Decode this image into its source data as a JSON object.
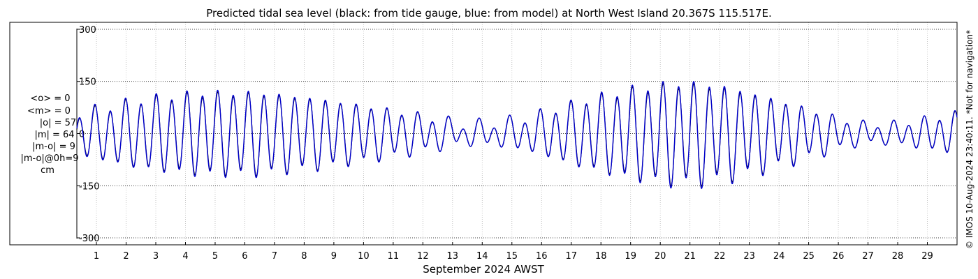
{
  "chart_data": {
    "type": "line",
    "title": "Predicted tidal sea level (black: from tide gauge, blue: from model) at North West Island 20.367S 115.517E.",
    "xlabel": "September 2024 AWST",
    "ylabel": "",
    "x_unit": "day of September 2024",
    "xlim": [
      0.34,
      30.0
    ],
    "ylim": [
      -320,
      320
    ],
    "y_ticks": [
      -300,
      -150,
      0,
      150,
      300
    ],
    "y_tick_labels": [
      "-300",
      "-150",
      "0",
      "150",
      "300"
    ],
    "x_ticks": [
      1,
      2,
      3,
      4,
      5,
      6,
      7,
      8,
      9,
      10,
      11,
      12,
      13,
      14,
      15,
      16,
      17,
      18,
      19,
      20,
      21,
      22,
      23,
      24,
      25,
      26,
      27,
      28,
      29
    ],
    "x_tick_labels": [
      "1",
      "2",
      "3",
      "4",
      "5",
      "6",
      "7",
      "8",
      "9",
      "10",
      "11",
      "12",
      "13",
      "14",
      "15",
      "16",
      "17",
      "18",
      "19",
      "20",
      "21",
      "22",
      "23",
      "24",
      "25",
      "26",
      "27",
      "28",
      "29"
    ],
    "grid": true,
    "legend": "none",
    "stats": {
      "mean_obs": "<o> = 0",
      "mean_model": "<m> = 0",
      "abs_obs": "|o| = 57",
      "abs_model": "|m| = 64",
      "abs_diff": "|m-o| = 9",
      "abs_diff_0h": "|m-o|@0h=9",
      "unit": "cm"
    },
    "series": [
      {
        "color": "#000000",
        "width": 1.2,
        "semidiurnal_peak_amplitude": [
          [
            0.3,
            55
          ],
          [
            2.5,
            95
          ],
          [
            4.5,
            112
          ],
          [
            6.5,
            112
          ],
          [
            8.5,
            95
          ],
          [
            10.5,
            70
          ],
          [
            12.3,
            45
          ],
          [
            13.3,
            28
          ],
          [
            14.3,
            30
          ],
          [
            15.5,
            45
          ],
          [
            17.3,
            90
          ],
          [
            19.0,
            122
          ],
          [
            20.5,
            138
          ],
          [
            21.5,
            135
          ],
          [
            22.5,
            122
          ],
          [
            24.0,
            90
          ],
          [
            25.5,
            55
          ],
          [
            26.5,
            32
          ],
          [
            27.5,
            25
          ],
          [
            28.5,
            35
          ],
          [
            30.0,
            55
          ]
        ],
        "diurnal_amplitude": [
          [
            0,
            14
          ],
          [
            5,
            12
          ],
          [
            10,
            10
          ],
          [
            13,
            18
          ],
          [
            17,
            12
          ],
          [
            21,
            18
          ],
          [
            25,
            14
          ],
          [
            30,
            10
          ]
        ],
        "semidiurnal_period_days": 0.5175,
        "diurnal_period_days": 1.0,
        "semidiurnal_phase": 1.0,
        "diurnal_phase": 0.3
      },
      {
        "color": "#0000cc",
        "width": 1.4,
        "semidiurnal_peak_amplitude": [
          [
            0.3,
            58
          ],
          [
            2.5,
            98
          ],
          [
            4.5,
            117
          ],
          [
            6.5,
            116
          ],
          [
            8.5,
            98
          ],
          [
            10.5,
            72
          ],
          [
            12.3,
            46
          ],
          [
            13.3,
            28
          ],
          [
            14.3,
            30
          ],
          [
            15.5,
            46
          ],
          [
            17.3,
            93
          ],
          [
            19.0,
            127
          ],
          [
            20.5,
            144
          ],
          [
            21.5,
            141
          ],
          [
            22.5,
            127
          ],
          [
            24.0,
            93
          ],
          [
            25.5,
            56
          ],
          [
            26.5,
            32
          ],
          [
            27.5,
            25
          ],
          [
            28.5,
            35
          ],
          [
            30.0,
            57
          ]
        ],
        "diurnal_amplitude": [
          [
            0,
            15
          ],
          [
            5,
            12
          ],
          [
            10,
            10
          ],
          [
            13,
            18
          ],
          [
            17,
            12
          ],
          [
            21,
            18
          ],
          [
            25,
            14
          ],
          [
            30,
            10
          ]
        ],
        "semidiurnal_period_days": 0.5175,
        "diurnal_period_days": 1.0,
        "semidiurnal_phase": 1.05,
        "diurnal_phase": 0.32
      }
    ]
  },
  "side_note": "© IMOS 10-Aug-2024 23:40:11. *Not for navigation*"
}
